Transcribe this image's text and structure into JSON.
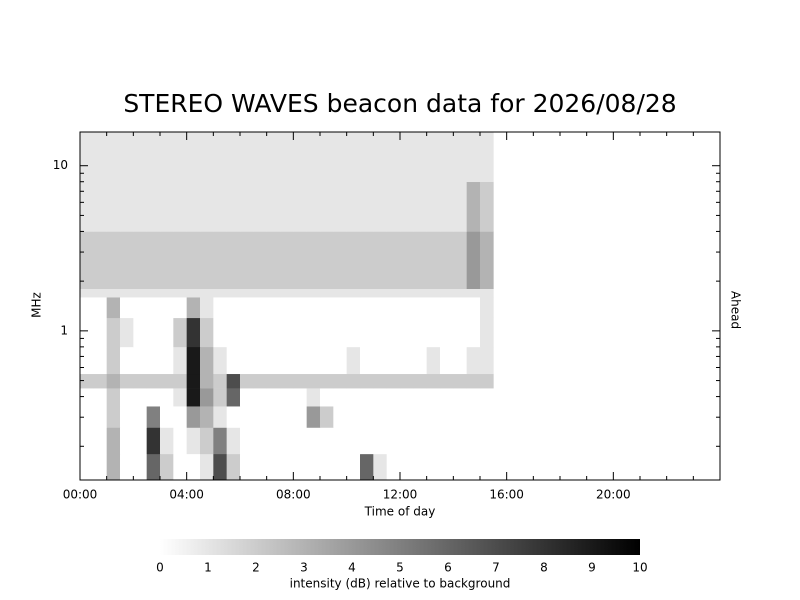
{
  "chart_data": {
    "type": "spectrogram",
    "title": "STEREO WAVES beacon data for 2026/08/28",
    "xlabel": "Time of day",
    "ylabel": "MHz",
    "right_label": "Ahead",
    "right_label_color": "#e00000",
    "xlim": [
      0,
      24
    ],
    "xticks": [
      {
        "value": 0,
        "label": "00:00"
      },
      {
        "value": 4,
        "label": "04:00"
      },
      {
        "value": 8,
        "label": "08:00"
      },
      {
        "value": 12,
        "label": "12:00"
      },
      {
        "value": 16,
        "label": "16:00"
      },
      {
        "value": 20,
        "label": "20:00"
      }
    ],
    "xminor_ticks": [
      1,
      2,
      3,
      5,
      6,
      7,
      9,
      10,
      11,
      13,
      14,
      15,
      17,
      18,
      19,
      21,
      22,
      23
    ],
    "ylim": [
      0.125,
      16
    ],
    "ylog": true,
    "yticks": [
      1,
      10
    ],
    "yminor_ticks": [
      0.2,
      0.3,
      0.4,
      0.5,
      0.6,
      0.7,
      0.8,
      0.9,
      2,
      3,
      4,
      5,
      6,
      7,
      8,
      9
    ],
    "x_bins": [
      0,
      0.5,
      1,
      1.5,
      2,
      2.5,
      3,
      3.5,
      4,
      4.5,
      5,
      5.5,
      6,
      6.5,
      7,
      7.5,
      8,
      8.5,
      9,
      9.5,
      10,
      10.5,
      11,
      11.5,
      12,
      12.5,
      13,
      13.5,
      14,
      14.5,
      15,
      15.5
    ],
    "y_bins": [
      0.125,
      0.18,
      0.26,
      0.35,
      0.45,
      0.55,
      0.8,
      1.2,
      1.6,
      1.8,
      4,
      8,
      16
    ],
    "values": [
      [
        0,
        0,
        3,
        0,
        0,
        6,
        2,
        0,
        0,
        1,
        7,
        2,
        0,
        0,
        0,
        0,
        0,
        0,
        0,
        0,
        0,
        6,
        1,
        0,
        0,
        0,
        0,
        0,
        0,
        0,
        0
      ],
      [
        0,
        0,
        3,
        0,
        0,
        8,
        1,
        0,
        1,
        2,
        5,
        1,
        0,
        0,
        0,
        0,
        0,
        0,
        0,
        0,
        0,
        0,
        0,
        0,
        0,
        0,
        0,
        0,
        0,
        0,
        0
      ],
      [
        0,
        0,
        2,
        0,
        0,
        5,
        0,
        0,
        4,
        3,
        1,
        0,
        0,
        0,
        0,
        0,
        0,
        4,
        2,
        0,
        0,
        0,
        0,
        0,
        0,
        0,
        0,
        0,
        0,
        0,
        0
      ],
      [
        0,
        0,
        2,
        0,
        0,
        0,
        0,
        1,
        9,
        4,
        2,
        6,
        0,
        0,
        0,
        0,
        0,
        1,
        0,
        0,
        0,
        0,
        0,
        0,
        0,
        0,
        0,
        0,
        0,
        0,
        0
      ],
      [
        2,
        2,
        3,
        2,
        2,
        2,
        2,
        2,
        9,
        3,
        2,
        7,
        2,
        2,
        2,
        2,
        2,
        2,
        2,
        2,
        2,
        2,
        2,
        2,
        2,
        2,
        2,
        2,
        2,
        2,
        2
      ],
      [
        0,
        0,
        2,
        0,
        0,
        0,
        0,
        1,
        9,
        3,
        1,
        0,
        0,
        0,
        0,
        0,
        0,
        0,
        0,
        0,
        1,
        0,
        0,
        0,
        0,
        0,
        1,
        0,
        0,
        1,
        1
      ],
      [
        0,
        0,
        2,
        1,
        0,
        0,
        0,
        2,
        8,
        2,
        0,
        0,
        0,
        0,
        0,
        0,
        0,
        0,
        0,
        0,
        0,
        0,
        0,
        0,
        0,
        0,
        0,
        0,
        0,
        0,
        1
      ],
      [
        0,
        0,
        3,
        0,
        0,
        0,
        0,
        0,
        3,
        1,
        0,
        0,
        0,
        0,
        0,
        0,
        0,
        0,
        0,
        0,
        0,
        0,
        0,
        0,
        0,
        0,
        0,
        0,
        0,
        0,
        1
      ],
      [
        1,
        1,
        1,
        1,
        1,
        1,
        1,
        1,
        1,
        1,
        1,
        1,
        1,
        1,
        1,
        1,
        1,
        1,
        1,
        1,
        1,
        1,
        1,
        1,
        1,
        1,
        1,
        1,
        1,
        1,
        1
      ],
      [
        2,
        2,
        2,
        2,
        2,
        2,
        2,
        2,
        2,
        2,
        2,
        2,
        2,
        2,
        2,
        2,
        2,
        2,
        2,
        2,
        2,
        2,
        2,
        2,
        2,
        2,
        2,
        2,
        2,
        4,
        3
      ],
      [
        1,
        1,
        1,
        1,
        1,
        1,
        1,
        1,
        1,
        1,
        1,
        1,
        1,
        1,
        1,
        1,
        1,
        1,
        1,
        1,
        1,
        1,
        1,
        1,
        1,
        1,
        1,
        1,
        1,
        3,
        2
      ],
      [
        1,
        1,
        1,
        1,
        1,
        1,
        1,
        1,
        1,
        1,
        1,
        1,
        1,
        1,
        1,
        1,
        1,
        1,
        1,
        1,
        1,
        1,
        1,
        1,
        1,
        1,
        1,
        1,
        1,
        1,
        1
      ]
    ],
    "colorbar": {
      "label": "intensity (dB) relative to background",
      "lim": [
        0,
        10
      ],
      "ticks": [
        0,
        1,
        2,
        3,
        4,
        5,
        6,
        7,
        8,
        9,
        10
      ]
    }
  }
}
